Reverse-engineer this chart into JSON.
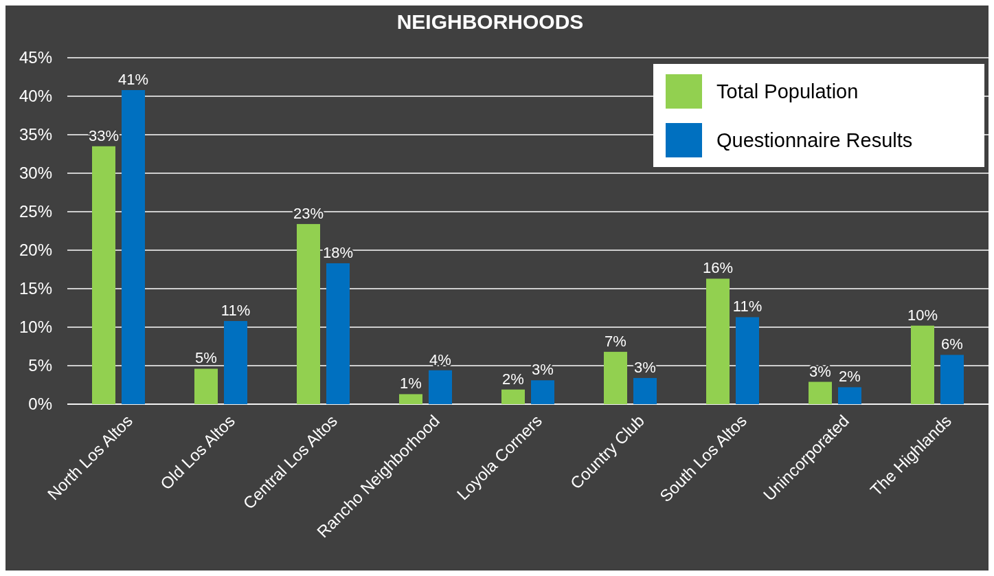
{
  "chart_data": {
    "type": "bar",
    "title": "NEIGHBORHOODS",
    "categories": [
      "North Los Altos",
      "Old Los Altos",
      "Central Los Altos",
      "Rancho Neighborhood",
      "Loyola Corners",
      "Country Club",
      "South Los Altos",
      "Unincorporated",
      "The Highlands"
    ],
    "series": [
      {
        "name": "Total Population",
        "color": "#92d050",
        "values": [
          33.5,
          4.6,
          23.4,
          1.3,
          1.9,
          6.8,
          16.3,
          2.9,
          10.2
        ],
        "value_labels": [
          "33%",
          "5%",
          "23%",
          "1%",
          "2%",
          "7%",
          "16%",
          "3%",
          "10%"
        ]
      },
      {
        "name": "Questionnaire Results",
        "color": "#0070c0",
        "values": [
          40.8,
          10.8,
          18.3,
          4.4,
          3.1,
          3.4,
          11.3,
          2.2,
          6.4
        ],
        "value_labels": [
          "41%",
          "11%",
          "18%",
          "4%",
          "3%",
          "3%",
          "11%",
          "2%",
          "6%"
        ]
      }
    ],
    "ylim": [
      0,
      45
    ],
    "yticks": [
      {
        "value": 0,
        "label": "0%"
      },
      {
        "value": 5,
        "label": "5%"
      },
      {
        "value": 10,
        "label": "10%"
      },
      {
        "value": 15,
        "label": "15%"
      },
      {
        "value": 20,
        "label": "20%"
      },
      {
        "value": 25,
        "label": "25%"
      },
      {
        "value": 30,
        "label": "30%"
      },
      {
        "value": 35,
        "label": "35%"
      },
      {
        "value": 40,
        "label": "40%"
      },
      {
        "value": 45,
        "label": "45%"
      }
    ],
    "grid": "y",
    "legend": "top right"
  }
}
